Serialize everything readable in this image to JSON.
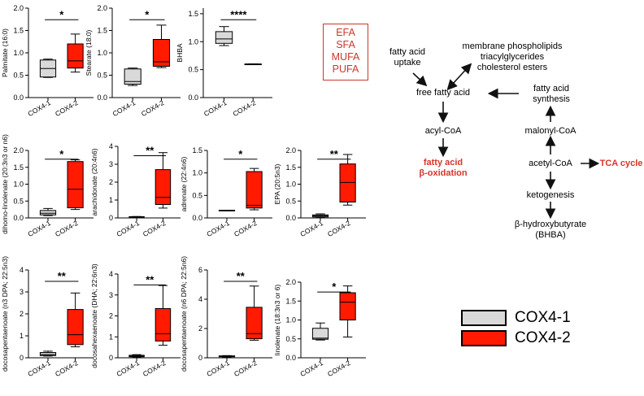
{
  "chart_data": [
    {
      "type": "box",
      "ylabel": "Palmitate (16:0)",
      "ylim": [
        0,
        2.0
      ],
      "yticks": [
        "0.0",
        "0.5",
        "1.0",
        "1.5",
        "2.0"
      ],
      "categories": [
        "COX4-1",
        "COX4-2"
      ],
      "sig": "*",
      "boxes": [
        {
          "min": 0.45,
          "q1": 0.46,
          "median": 0.65,
          "q3": 0.84,
          "max": 0.86
        },
        {
          "min": 0.57,
          "q1": 0.66,
          "median": 0.82,
          "q3": 1.2,
          "max": 1.42
        }
      ]
    },
    {
      "type": "box",
      "ylabel": "Stearate (18:0)",
      "ylim": [
        0,
        2.0
      ],
      "yticks": [
        "0.0",
        "0.5",
        "1.0",
        "1.5",
        "2.0"
      ],
      "categories": [
        "COX4-1",
        "COX4-2"
      ],
      "sig": "*",
      "boxes": [
        {
          "min": 0.27,
          "q1": 0.3,
          "median": 0.36,
          "q3": 0.64,
          "max": 0.66
        },
        {
          "min": 0.67,
          "q1": 0.7,
          "median": 0.8,
          "q3": 1.3,
          "max": 1.62
        }
      ]
    },
    {
      "type": "box",
      "ylabel": "BHBA",
      "ylim": [
        0,
        1.6
      ],
      "yticks": [
        "0.0",
        "0.5",
        "1.0",
        "1.5"
      ],
      "categories": [
        "COX4-1",
        "COX4-2"
      ],
      "sig": "****",
      "boxes": [
        {
          "min": 0.93,
          "q1": 0.97,
          "median": 1.05,
          "q3": 1.18,
          "max": 1.27
        },
        {
          "min": 0.6,
          "q1": 0.6,
          "median": 0.6,
          "q3": 0.6,
          "max": 0.6
        }
      ]
    },
    {
      "type": "box",
      "ylabel": "dihomo-linolenate (20:3n3 or n6)",
      "ylim": [
        0,
        2.0
      ],
      "yticks": [
        "0.0",
        "0.5",
        "1.0",
        "1.5",
        "2.0"
      ],
      "categories": [
        "COX4-1",
        "COX4-2"
      ],
      "sig": "*",
      "boxes": [
        {
          "min": 0.07,
          "q1": 0.09,
          "median": 0.14,
          "q3": 0.22,
          "max": 0.28
        },
        {
          "min": 0.25,
          "q1": 0.3,
          "median": 0.85,
          "q3": 1.67,
          "max": 1.72
        }
      ]
    },
    {
      "type": "box",
      "ylabel": "arachidonate (20:4n6)",
      "ylim": [
        0,
        4
      ],
      "yticks": [
        "0",
        "1",
        "2",
        "3",
        "4"
      ],
      "categories": [
        "COX4-1",
        "COX4-2"
      ],
      "sig": "**",
      "boxes": [
        {
          "min": 0.02,
          "q1": 0.03,
          "median": 0.05,
          "q3": 0.07,
          "max": 0.08
        },
        {
          "min": 0.55,
          "q1": 0.75,
          "median": 1.15,
          "q3": 2.7,
          "max": 3.65
        }
      ]
    },
    {
      "type": "box",
      "ylabel": "adrenate (22:4n6)",
      "ylim": [
        0,
        1.5
      ],
      "yticks": [
        "0.0",
        "0.5",
        "1.0",
        "1.5"
      ],
      "categories": [
        "COX4-1",
        "COX4-2"
      ],
      "sig": "*",
      "boxes": [
        {
          "min": 0.17,
          "q1": 0.17,
          "median": 0.17,
          "q3": 0.17,
          "max": 0.17
        },
        {
          "min": 0.18,
          "q1": 0.22,
          "median": 0.28,
          "q3": 1.03,
          "max": 1.1
        }
      ]
    },
    {
      "type": "box",
      "ylabel": "EPA (20:5n3)",
      "ylim": [
        0,
        2.0
      ],
      "yticks": [
        "0.0",
        "0.5",
        "1.0",
        "1.5",
        "2.0"
      ],
      "categories": [
        "COX4-1",
        "COX4-2"
      ],
      "sig": "**",
      "boxes": [
        {
          "min": 0.01,
          "q1": 0.03,
          "median": 0.06,
          "q3": 0.09,
          "max": 0.12
        },
        {
          "min": 0.38,
          "q1": 0.47,
          "median": 1.05,
          "q3": 1.6,
          "max": 1.88
        }
      ]
    },
    {
      "type": "box",
      "ylabel": "docosapentaenoate (n3 DPA; 22:5n3)",
      "ylim": [
        0,
        4
      ],
      "yticks": [
        "0",
        "1",
        "2",
        "3",
        "4"
      ],
      "categories": [
        "COX4-1",
        "COX4-2"
      ],
      "sig": "**",
      "boxes": [
        {
          "min": 0.08,
          "q1": 0.1,
          "median": 0.15,
          "q3": 0.24,
          "max": 0.3
        },
        {
          "min": 0.5,
          "q1": 0.6,
          "median": 1.05,
          "q3": 2.2,
          "max": 2.95
        }
      ]
    },
    {
      "type": "box",
      "ylabel": "docosahexaenoate (DHA; 22:6n3)",
      "ylim": [
        0,
        4
      ],
      "yticks": [
        "0",
        "1",
        "2",
        "3",
        "4"
      ],
      "categories": [
        "COX4-1",
        "COX4-2"
      ],
      "sig": "**",
      "boxes": [
        {
          "min": 0.02,
          "q1": 0.05,
          "median": 0.08,
          "q3": 0.12,
          "max": 0.15
        },
        {
          "min": 0.6,
          "q1": 0.8,
          "median": 1.15,
          "q3": 2.35,
          "max": 3.45
        }
      ]
    },
    {
      "type": "box",
      "ylabel": "docosapentaenoate (n6 DPA; 22:5n6)",
      "ylim": [
        0,
        6
      ],
      "yticks": [
        "0",
        "2",
        "4",
        "6"
      ],
      "categories": [
        "COX4-1",
        "COX4-2"
      ],
      "sig": "**",
      "boxes": [
        {
          "min": 0.05,
          "q1": 0.07,
          "median": 0.1,
          "q3": 0.13,
          "max": 0.15
        },
        {
          "min": 1.2,
          "q1": 1.3,
          "median": 1.65,
          "q3": 3.45,
          "max": 4.9
        }
      ]
    },
    {
      "type": "box",
      "ylabel": "linolenate (18:3n3 or 6)",
      "ylim": [
        0,
        2.0
      ],
      "yticks": [
        "0.0",
        "0.5",
        "1.0",
        "1.5",
        "2.0"
      ],
      "categories": [
        "COX4-1",
        "COX4-2"
      ],
      "sig": "*",
      "boxes": [
        {
          "min": 0.47,
          "q1": 0.49,
          "median": 0.52,
          "q3": 0.78,
          "max": 0.92
        },
        {
          "min": 0.55,
          "q1": 1.0,
          "median": 1.47,
          "q3": 1.72,
          "max": 1.9
        }
      ]
    }
  ],
  "colors": {
    "cox41": "#d9d9d9",
    "cox42": "#ff1a00",
    "pathway_red": "#d8342a"
  },
  "fa_box": {
    "l1": "EFA",
    "l2": "SFA",
    "l3": "MUFA",
    "l4": "PUFA"
  },
  "pathway": {
    "fa_uptake": "fatty acid\nuptake",
    "membrane": "membrane phospholipids\ntriacylglycerides\ncholesterol esters",
    "free_fa": "free fatty acid",
    "fa_synthesis": "fatty acid\nsynthesis",
    "acyl_coa": "acyl-CoA",
    "malonyl": "malonyl-CoA",
    "beta_ox": "fatty acid\nβ-oxidation",
    "acetyl": "acetyl-CoA",
    "tca": "TCA cycle",
    "ketogenesis": "ketogenesis",
    "bhb": "β-hydroxybutyrate\n(BHBA)"
  },
  "legend": {
    "item1": "COX4-1",
    "item2": "COX4-2"
  }
}
